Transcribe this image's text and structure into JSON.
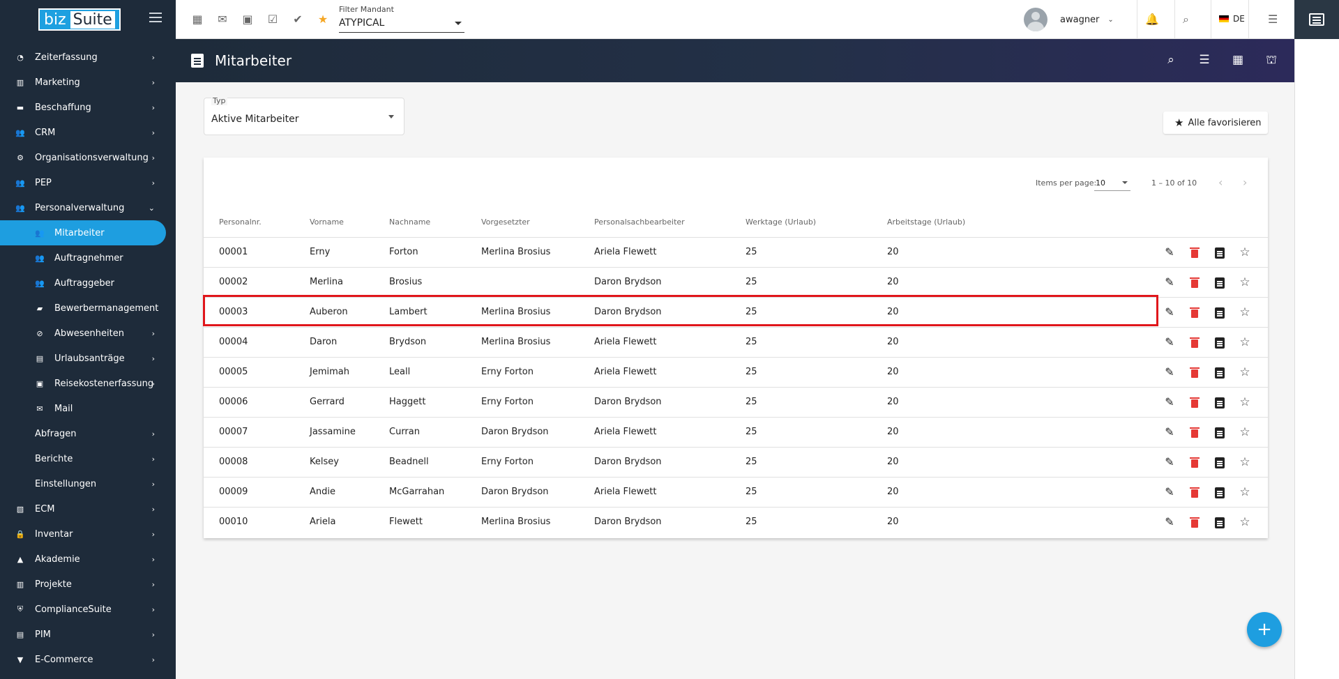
{
  "app": {
    "logo_left": "biz",
    "logo_right": "Suite"
  },
  "sidebar": {
    "items": [
      {
        "label": "Zeiterfassung",
        "icon": "clock-icon",
        "has_children": true
      },
      {
        "label": "Marketing",
        "icon": "chart-icon",
        "has_children": true
      },
      {
        "label": "Beschaffung",
        "icon": "truck-icon",
        "has_children": true
      },
      {
        "label": "CRM",
        "icon": "people-icon",
        "has_children": true
      },
      {
        "label": "Organisationsverwaltung",
        "icon": "org-icon",
        "has_children": true
      },
      {
        "label": "PEP",
        "icon": "people-icon",
        "has_children": true
      },
      {
        "label": "Personalverwaltung",
        "icon": "people-icon",
        "has_children": true,
        "expanded": true
      },
      {
        "label": "Mitarbeiter",
        "icon": "people-icon",
        "sub": true,
        "active": true
      },
      {
        "label": "Auftragnehmer",
        "icon": "people-icon",
        "sub": true
      },
      {
        "label": "Auftraggeber",
        "icon": "people-icon",
        "sub": true
      },
      {
        "label": "Bewerbermanagement",
        "icon": "briefcase-icon",
        "sub": true
      },
      {
        "label": "Abwesenheiten",
        "icon": "block-icon",
        "sub": true,
        "has_children": true
      },
      {
        "label": "Urlaubsanträge",
        "icon": "form-icon",
        "sub": true,
        "has_children": true
      },
      {
        "label": "Reisekostenerfassung",
        "icon": "clipboard-icon",
        "sub": true,
        "has_children": true
      },
      {
        "label": "Mail",
        "icon": "mail-icon",
        "sub": true
      },
      {
        "label": "Abfragen",
        "icon": "",
        "has_children": true
      },
      {
        "label": "Berichte",
        "icon": "",
        "has_children": true
      },
      {
        "label": "Einstellungen",
        "icon": "",
        "has_children": true
      },
      {
        "label": "ECM",
        "icon": "archive-icon",
        "has_children": true
      },
      {
        "label": "Inventar",
        "icon": "lock-icon",
        "has_children": true
      },
      {
        "label": "Akademie",
        "icon": "school-icon",
        "has_children": true
      },
      {
        "label": "Projekte",
        "icon": "chart-icon",
        "has_children": true
      },
      {
        "label": "ComplianceSuite",
        "icon": "shield-icon",
        "has_children": true
      },
      {
        "label": "PIM",
        "icon": "list-icon",
        "has_children": true
      },
      {
        "label": "E-Commerce",
        "icon": "cart-icon",
        "has_children": true
      }
    ]
  },
  "topbar": {
    "filter_label": "Filter Mandant",
    "filter_value": "ATYPICAL",
    "username": "awagner",
    "language": "DE"
  },
  "header": {
    "title": "Mitarbeiter"
  },
  "type_select": {
    "label": "Typ",
    "value": "Aktive Mitarbeiter"
  },
  "fav_all_label": "Alle favorisieren",
  "paginator": {
    "items_per_page_label": "Items per page:",
    "page_size": "10",
    "range": "1 – 10 of 10"
  },
  "table": {
    "columns": [
      "Personalnr.",
      "Vorname",
      "Nachname",
      "Vorgesetzter",
      "Personalsachbearbeiter",
      "Werktage (Urlaub)",
      "Arbeitstage (Urlaub)"
    ],
    "rows": [
      [
        "00001",
        "Erny",
        "Forton",
        "Merlina Brosius",
        "Ariela Flewett",
        "25",
        "20"
      ],
      [
        "00002",
        "Merlina",
        "Brosius",
        "",
        "Daron Brydson",
        "25",
        "20"
      ],
      [
        "00003",
        "Auberon",
        "Lambert",
        "Merlina Brosius",
        "Daron Brydson",
        "25",
        "20"
      ],
      [
        "00004",
        "Daron",
        "Brydson",
        "Merlina Brosius",
        "Ariela Flewett",
        "25",
        "20"
      ],
      [
        "00005",
        "Jemimah",
        "Leall",
        "Erny Forton",
        "Ariela Flewett",
        "25",
        "20"
      ],
      [
        "00006",
        "Gerrard",
        "Haggett",
        "Erny Forton",
        "Daron Brydson",
        "25",
        "20"
      ],
      [
        "00007",
        "Jassamine",
        "Curran",
        "Daron Brydson",
        "Ariela Flewett",
        "25",
        "20"
      ],
      [
        "00008",
        "Kelsey",
        "Beadnell",
        "Erny Forton",
        "Daron Brydson",
        "25",
        "20"
      ],
      [
        "00009",
        "Andie",
        "McGarrahan",
        "Daron Brydson",
        "Ariela Flewett",
        "25",
        "20"
      ],
      [
        "00010",
        "Ariela",
        "Flewett",
        "Merlina Brosius",
        "Daron Brydson",
        "25",
        "20"
      ]
    ],
    "highlighted_row": 2
  },
  "colors": {
    "accent": "#1e9ee0",
    "sidebar_bg": "#1e2b3a",
    "highlight": "#e0161b",
    "delete": "#e53935"
  }
}
